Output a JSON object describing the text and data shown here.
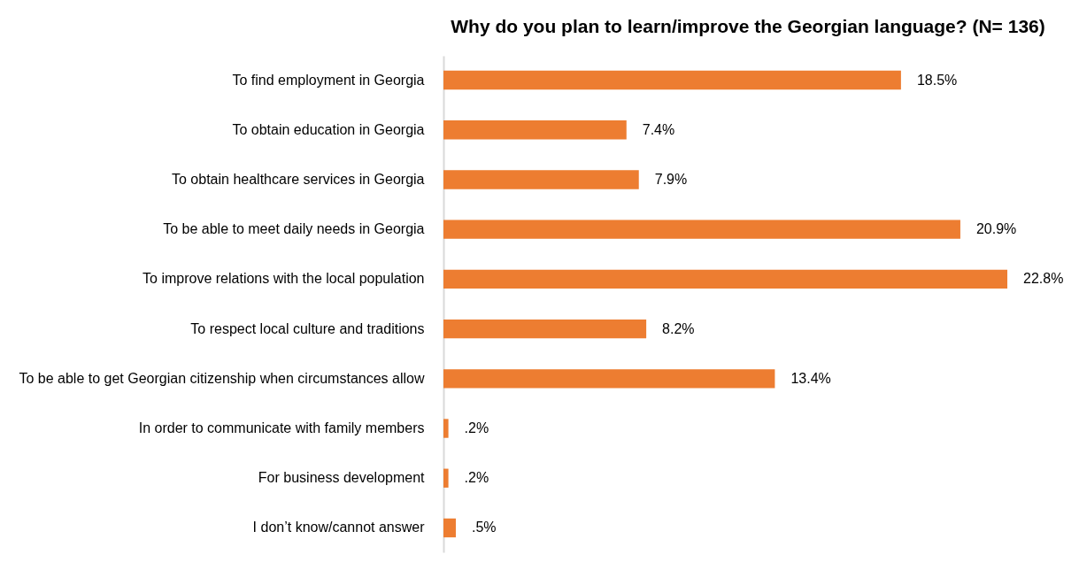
{
  "chart_data": {
    "type": "bar",
    "orientation": "horizontal",
    "title": "Why do you plan to learn/improve the Georgian language? (N= 136)",
    "categories": [
      "To find employment in Georgia",
      "To obtain education in Georgia",
      "To obtain healthcare services in Georgia",
      "To be able to meet daily needs in Georgia",
      "To improve relations with the local population",
      "To respect local culture and traditions",
      "To be able to get Georgian citizenship when circumstances allow",
      "In order to communicate with family members",
      "For business development",
      "I don’t know/cannot answer"
    ],
    "values": [
      18.5,
      7.4,
      7.9,
      20.9,
      22.8,
      8.2,
      13.4,
      0.2,
      0.2,
      0.5
    ],
    "value_labels": [
      "18.5%",
      "7.4%",
      "7.9%",
      "20.9%",
      "22.8%",
      "8.2%",
      "13.4%",
      ".2%",
      ".2%",
      ".5%"
    ],
    "color": "#ed7d31",
    "grid": false,
    "tick_labels": "y"
  }
}
